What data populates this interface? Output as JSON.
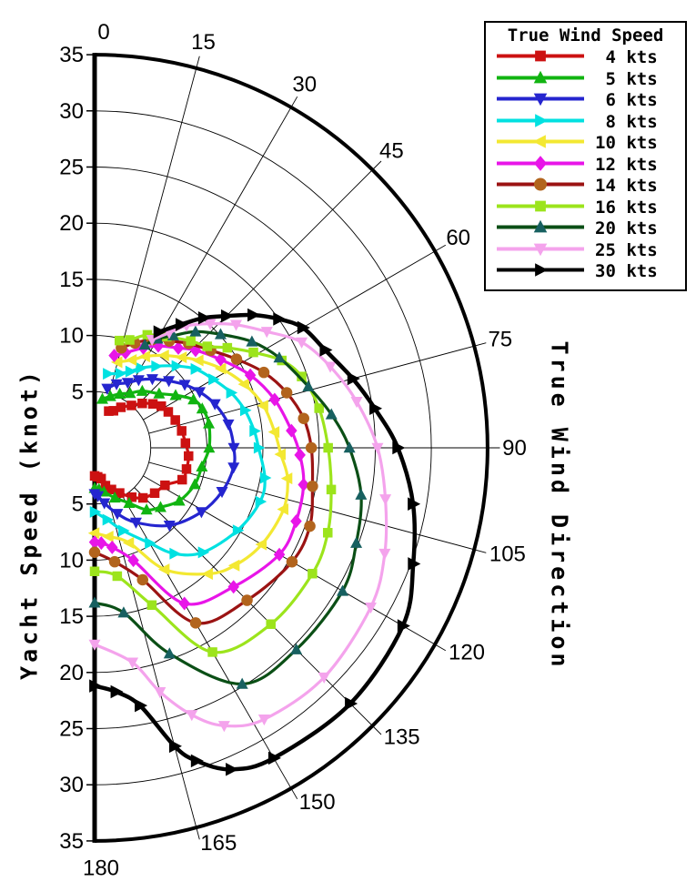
{
  "figure": {
    "radial_axis_title": "Yacht Speed (knot)",
    "angular_axis_title": "True Wind Direction"
  },
  "chart_data": {
    "type": "line",
    "coordinate_system": "polar-half",
    "legend_title": "True Wind Speed",
    "legend_position": "top-right",
    "grid": true,
    "angular_axis": {
      "label": "True Wind Direction",
      "unit": "degrees",
      "range": [
        0,
        180
      ],
      "ticks": [
        0,
        15,
        30,
        45,
        60,
        75,
        90,
        105,
        120,
        135,
        150,
        165,
        180
      ]
    },
    "radial_axis": {
      "label": "Yacht Speed (knot)",
      "unit": "knots",
      "range": [
        0,
        35
      ],
      "inner_hole": 5,
      "ticks": [
        5,
        10,
        15,
        20,
        25,
        30,
        35
      ]
    },
    "series": [
      {
        "name": "4 kts",
        "line_color": "#cc1111",
        "marker": "square",
        "marker_color": "#cc1111",
        "points": [
          [
            21,
            3.5
          ],
          [
            27,
            3.7
          ],
          [
            33,
            4.3
          ],
          [
            41,
            5.0
          ],
          [
            47,
            5.8
          ],
          [
            53,
            6.5
          ],
          [
            58,
            7.0
          ],
          [
            64,
            7.3
          ],
          [
            71,
            7.6
          ],
          [
            79,
            7.9
          ],
          [
            87,
            8.1
          ],
          [
            95,
            8.4
          ],
          [
            103,
            8.4
          ],
          [
            110,
            8.3
          ],
          [
            118,
            7.1
          ],
          [
            127,
            6.7
          ],
          [
            136,
            6.2
          ],
          [
            143,
            5.5
          ],
          [
            151,
            4.6
          ],
          [
            158,
            4.0
          ],
          [
            164,
            3.5
          ],
          [
            168,
            2.8
          ],
          [
            174,
            2.6
          ],
          [
            180,
            2.5
          ]
        ]
      },
      {
        "name": "5 kts",
        "line_color": "#11b411",
        "marker": "triangle-up",
        "marker_color": "#11b411",
        "points": [
          [
            9,
            4.4
          ],
          [
            17,
            4.8
          ],
          [
            25,
            5.3
          ],
          [
            33,
            5.8
          ],
          [
            40,
            6.6
          ],
          [
            50,
            7.5
          ],
          [
            57,
            8.6
          ],
          [
            64,
            9.8
          ],
          [
            70,
            10.2
          ],
          [
            78,
            10.4
          ],
          [
            90,
            10.2
          ],
          [
            100,
            9.7
          ],
          [
            110,
            9.5
          ],
          [
            122,
            8.9
          ],
          [
            132,
            7.9
          ],
          [
            140,
            7.2
          ],
          [
            148,
            5.8
          ],
          [
            158,
            4.8
          ],
          [
            168,
            4.0
          ],
          [
            174,
            3.7
          ],
          [
            180,
            3.6
          ]
        ]
      },
      {
        "name": "6 kts",
        "line_color": "#2525cf",
        "marker": "triangle-down",
        "marker_color": "#2525cf",
        "points": [
          [
            12,
            5.4
          ],
          [
            19,
            6.0
          ],
          [
            27,
            6.5
          ],
          [
            33,
            7.2
          ],
          [
            40,
            8.0
          ],
          [
            48,
            8.9
          ],
          [
            55,
            9.8
          ],
          [
            62,
            10.6
          ],
          [
            70,
            11.4
          ],
          [
            80,
            12.1
          ],
          [
            90,
            12.4
          ],
          [
            98,
            12.5
          ],
          [
            109,
            12.0
          ],
          [
            121,
            11.1
          ],
          [
            136,
            9.6
          ],
          [
            151,
            7.6
          ],
          [
            161,
            6.2
          ],
          [
            170,
            5.0
          ],
          [
            176,
            4.3
          ],
          [
            180,
            4.1
          ]
        ]
      },
      {
        "name": "8 kts",
        "line_color": "#00e1e1",
        "marker": "triangle-right",
        "marker_color": "#00e1e1",
        "points": [
          [
            10,
            6.7
          ],
          [
            19,
            7.0
          ],
          [
            25,
            7.5
          ],
          [
            30,
            8.2
          ],
          [
            37,
            9.1
          ],
          [
            45,
            10.3
          ],
          [
            52,
            11.4
          ],
          [
            60,
            12.2
          ],
          [
            68,
            13.1
          ],
          [
            76,
            13.8
          ],
          [
            84,
            14.3
          ],
          [
            90,
            14.6
          ],
          [
            100,
            15.4
          ],
          [
            108,
            15.5
          ],
          [
            120,
            14.7
          ],
          [
            134,
            13.4
          ],
          [
            143,
            11.8
          ],
          [
            150,
            9.8
          ],
          [
            161,
            7.8
          ],
          [
            170,
            6.5
          ],
          [
            180,
            5.7
          ]
        ]
      },
      {
        "name": "10 kts",
        "line_color": "#f3e832",
        "marker": "triangle-left",
        "marker_color": "#f3e832",
        "points": [
          [
            15,
            7.9
          ],
          [
            23,
            8.5
          ],
          [
            29,
            9.3
          ],
          [
            37,
            10.3
          ],
          [
            44,
            11.2
          ],
          [
            50,
            12.1
          ],
          [
            58,
            13.3
          ],
          [
            67,
            14.5
          ],
          [
            76,
            15.5
          ],
          [
            85,
            16.1
          ],
          [
            92,
            16.6
          ],
          [
            99,
            17.4
          ],
          [
            108,
            17.7
          ],
          [
            120,
            17.2
          ],
          [
            130,
            16.3
          ],
          [
            138,
            15.1
          ],
          [
            150,
            12.5
          ],
          [
            160,
            9.0
          ],
          [
            171,
            8.0
          ],
          [
            180,
            7.6
          ]
        ]
      },
      {
        "name": "12 kts",
        "line_color": "#e815e8",
        "marker": "diamond",
        "marker_color": "#e815e8",
        "points": [
          [
            12,
            8.4
          ],
          [
            18,
            8.9
          ],
          [
            26,
            9.9
          ],
          [
            32,
            10.7
          ],
          [
            40,
            11.6
          ],
          [
            46,
            12.5
          ],
          [
            55,
            13.7
          ],
          [
            65,
            15.3
          ],
          [
            75,
            16.6
          ],
          [
            85,
            17.6
          ],
          [
            92,
            18.3
          ],
          [
            100,
            18.9
          ],
          [
            110,
            19.1
          ],
          [
            120,
            19.0
          ],
          [
            135,
            17.5
          ],
          [
            150,
            16.0
          ],
          [
            161,
            10.6
          ],
          [
            170,
            9.0
          ],
          [
            176,
            8.5
          ],
          [
            180,
            8.4
          ]
        ]
      },
      {
        "name": "14 kts",
        "line_color": "#9b1313",
        "marker": "circle",
        "marker_color": "#b2641d",
        "points": [
          [
            15,
            9.2
          ],
          [
            21,
            10.0
          ],
          [
            28,
            10.9
          ],
          [
            35,
            11.6
          ],
          [
            42,
            12.5
          ],
          [
            50,
            13.5
          ],
          [
            58,
            14.9
          ],
          [
            66,
            16.5
          ],
          [
            74,
            17.8
          ],
          [
            82,
            18.8
          ],
          [
            90,
            19.3
          ],
          [
            100,
            19.7
          ],
          [
            110,
            20.4
          ],
          [
            120,
            20.3
          ],
          [
            135,
            19.2
          ],
          [
            150,
            18.0
          ],
          [
            160,
            12.5
          ],
          [
            170,
            10.3
          ],
          [
            180,
            9.3
          ]
        ]
      },
      {
        "name": "16 kts",
        "line_color": "#9ce41c",
        "marker": "square",
        "marker_color": "#9ce41c",
        "points": [
          [
            13,
            9.8
          ],
          [
            18,
            10.1
          ],
          [
            25,
            11.1
          ],
          [
            33,
            11.8
          ],
          [
            42,
            12.8
          ],
          [
            48,
            13.5
          ],
          [
            53,
            14.8
          ],
          [
            59,
            16.5
          ],
          [
            65,
            18.4
          ],
          [
            71,
            19.5
          ],
          [
            80,
            20.3
          ],
          [
            90,
            20.8
          ],
          [
            100,
            21.4
          ],
          [
            110,
            22.1
          ],
          [
            120,
            22.4
          ],
          [
            135,
            22.2
          ],
          [
            150,
            21.0
          ],
          [
            160,
            14.9
          ],
          [
            170,
            11.6
          ],
          [
            180,
            11.0
          ]
        ]
      },
      {
        "name": "20 kts",
        "line_color": "#0b4f16",
        "marker": "triangle-up",
        "marker_color": "#176060",
        "points": [
          [
            26,
            10.2
          ],
          [
            30,
            11.2
          ],
          [
            35,
            12.2
          ],
          [
            41,
            13.7
          ],
          [
            48,
            15.1
          ],
          [
            56,
            16.9
          ],
          [
            64,
            18.3
          ],
          [
            74,
            19.8
          ],
          [
            82,
            21.3
          ],
          [
            90,
            22.7
          ],
          [
            100,
            24.1
          ],
          [
            110,
            24.8
          ],
          [
            120,
            25.5
          ],
          [
            135,
            25.4
          ],
          [
            148,
            24.8
          ],
          [
            160,
            19.5
          ],
          [
            170,
            14.9
          ],
          [
            180,
            13.8
          ]
        ]
      },
      {
        "name": "25 kts",
        "line_color": "#f4a3ec",
        "marker": "triangle-down",
        "marker_color": "#f4a3ec",
        "points": [
          [
            28,
            10.9
          ],
          [
            33,
            12.2
          ],
          [
            37,
            13.6
          ],
          [
            43,
            15.1
          ],
          [
            49,
            16.7
          ],
          [
            56,
            18.5
          ],
          [
            63,
            20.7
          ],
          [
            71,
            22.2
          ],
          [
            80,
            23.7
          ],
          [
            90,
            25.2
          ],
          [
            100,
            26.3
          ],
          [
            110,
            27.5
          ],
          [
            120,
            28.4
          ],
          [
            135,
            28.9
          ],
          [
            148,
            28.5
          ],
          [
            155,
            27.3
          ],
          [
            160,
            25.3
          ],
          [
            165,
            22.5
          ],
          [
            170,
            19.4
          ],
          [
            180,
            17.5
          ]
        ]
      },
      {
        "name": "30 kts",
        "line_color": "#000000",
        "marker": "triangle-right",
        "marker_color": "#000000",
        "points": [
          [
            29,
            11.8
          ],
          [
            35,
            13.4
          ],
          [
            40,
            15.1
          ],
          [
            45,
            16.6
          ],
          [
            50,
            18.4
          ],
          [
            55,
            20.0
          ],
          [
            60,
            21.4
          ],
          [
            67,
            22.3
          ],
          [
            75,
            23.8
          ],
          [
            82,
            25.2
          ],
          [
            90,
            27.0
          ],
          [
            100,
            28.8
          ],
          [
            110,
            30.2
          ],
          [
            120,
            31.7
          ],
          [
            135,
            32.2
          ],
          [
            150,
            31.9
          ],
          [
            157,
            31.1
          ],
          [
            162,
            29.3
          ],
          [
            165,
            27.5
          ],
          [
            170,
            23.3
          ],
          [
            175,
            21.8
          ],
          [
            180,
            21.2
          ]
        ]
      }
    ]
  }
}
